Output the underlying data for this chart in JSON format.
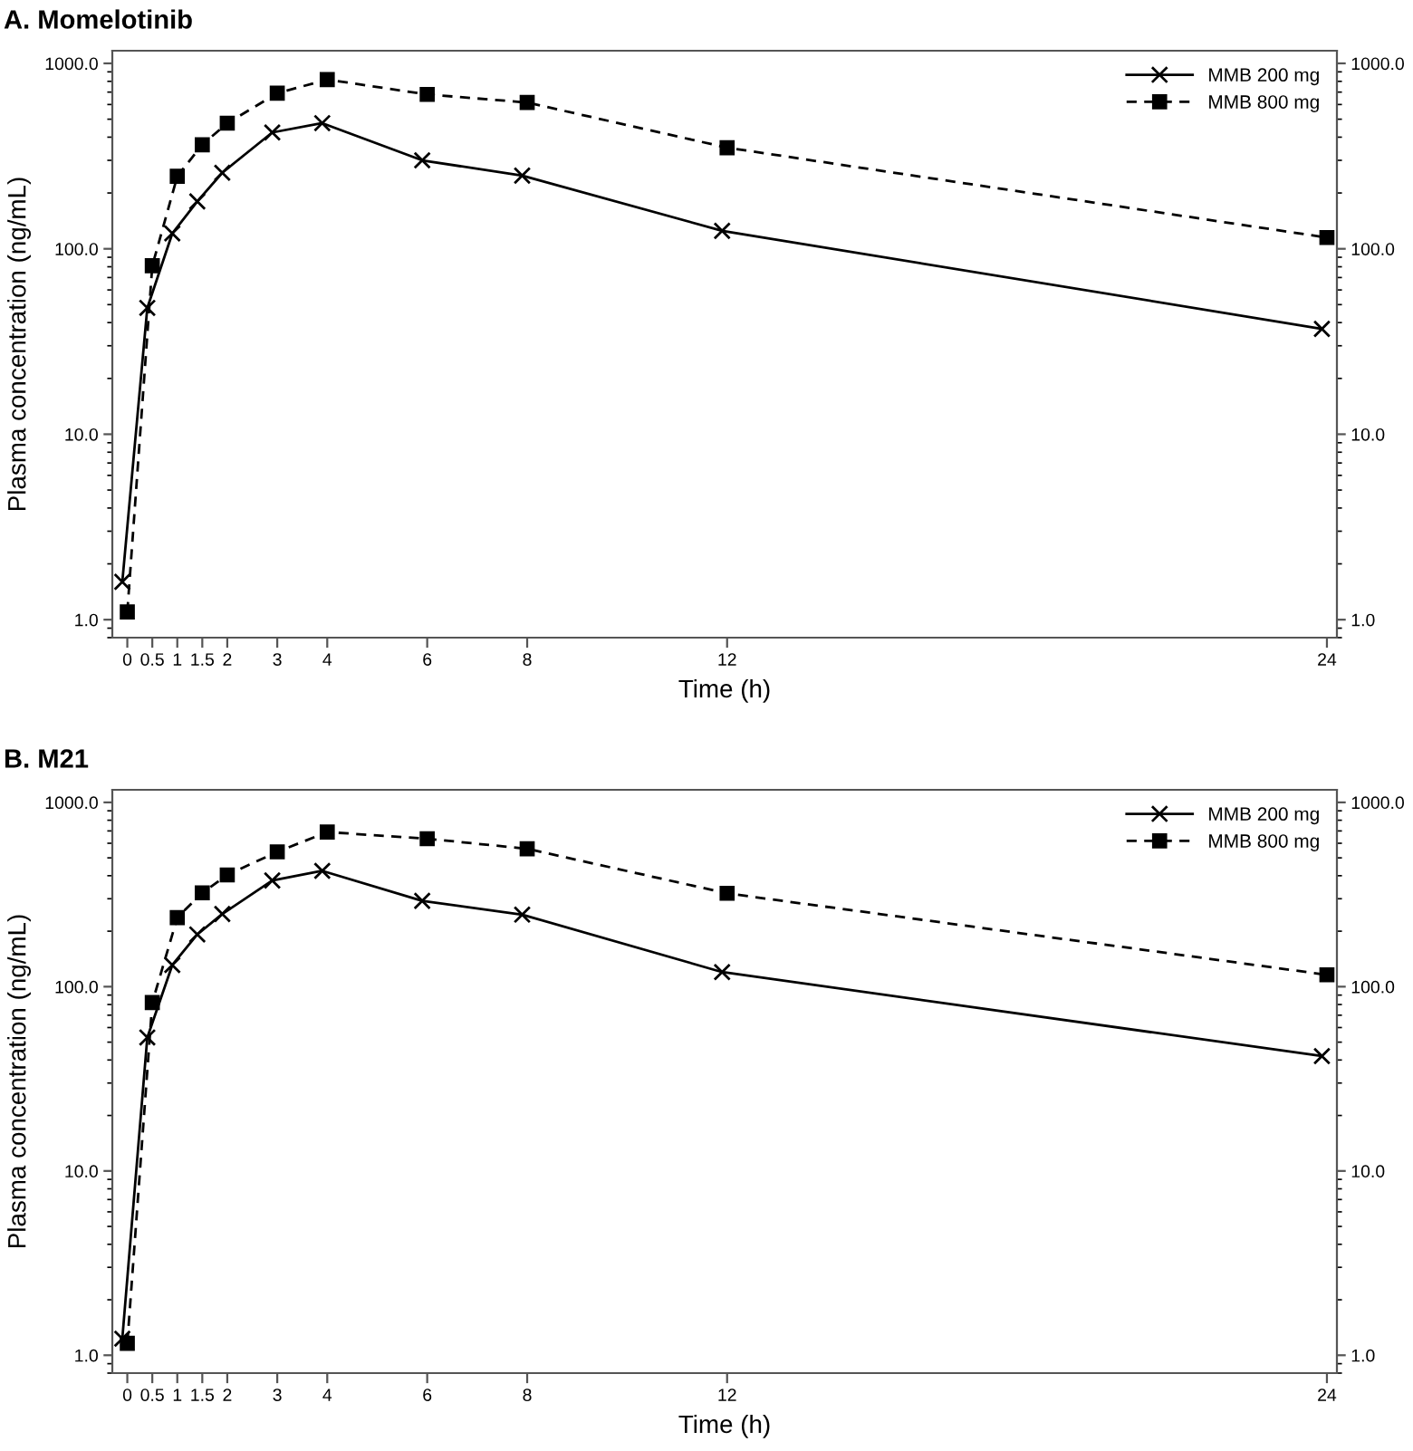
{
  "chart_data": [
    {
      "type": "line",
      "title": "A. Momelotinib",
      "xlabel": "Time (h)",
      "ylabel": "Plasma concentration (ng/mL)",
      "log": "y",
      "legend": "top right",
      "grid": false,
      "xlim": [
        -0.3,
        24.2
      ],
      "xticks": [
        0,
        0.5,
        1,
        1.5,
        2,
        3,
        4,
        6,
        8,
        12,
        24
      ],
      "ylim": [
        0.8,
        1170
      ],
      "yticks": [
        {
          "value": 1,
          "label": "1.0"
        },
        {
          "value": 10,
          "label": "10.0"
        },
        {
          "value": 100,
          "label": "100.0"
        },
        {
          "value": 1000,
          "label": "1000.0"
        }
      ],
      "series": [
        {
          "name": "MMB 200 mg",
          "color": "#000000",
          "marker": "cross",
          "line_style": "solid",
          "x": [
            -0.1,
            0.4,
            0.9,
            1.4,
            1.9,
            2.9,
            3.9,
            5.9,
            7.9,
            11.9,
            23.9
          ],
          "values": [
            1.6,
            48,
            121,
            180,
            257,
            424,
            476,
            300,
            248,
            125,
            37
          ]
        },
        {
          "name": "MMB 800 mg",
          "color": "#000000",
          "marker": "square",
          "line_style": "dashed",
          "x": [
            0,
            0.5,
            1,
            1.5,
            2,
            3,
            4,
            6,
            8,
            12,
            24
          ],
          "values": [
            1.1,
            81,
            246,
            364,
            476,
            690,
            818,
            680,
            615,
            351,
            115
          ]
        }
      ]
    },
    {
      "type": "line",
      "title": "B. M21",
      "xlabel": "Time (h)",
      "ylabel": "Plasma concentration (ng/mL)",
      "log": "y",
      "legend": "top right",
      "grid": false,
      "xlim": [
        -0.3,
        24.2
      ],
      "xticks": [
        0,
        0.5,
        1,
        1.5,
        2,
        3,
        4,
        6,
        8,
        12,
        24
      ],
      "ylim": [
        0.8,
        1170
      ],
      "yticks": [
        {
          "value": 1,
          "label": "1.0"
        },
        {
          "value": 10,
          "label": "10.0"
        },
        {
          "value": 100,
          "label": "100.0"
        },
        {
          "value": 1000,
          "label": "1000.0"
        }
      ],
      "series": [
        {
          "name": "MMB 200 mg",
          "color": "#000000",
          "marker": "cross",
          "line_style": "solid",
          "x": [
            -0.1,
            0.4,
            0.9,
            1.4,
            1.9,
            2.9,
            3.9,
            5.9,
            7.9,
            11.9,
            23.9
          ],
          "values": [
            1.23,
            53,
            131,
            192,
            248,
            377,
            425,
            292,
            246,
            120,
            42
          ]
        },
        {
          "name": "MMB 800 mg",
          "color": "#000000",
          "marker": "square",
          "line_style": "dashed",
          "x": [
            0,
            0.5,
            1,
            1.5,
            2,
            3,
            4,
            6,
            8,
            12,
            24
          ],
          "values": [
            1.16,
            82,
            237,
            323,
            404,
            539,
            690,
            635,
            560,
            321,
            116
          ]
        }
      ]
    }
  ]
}
